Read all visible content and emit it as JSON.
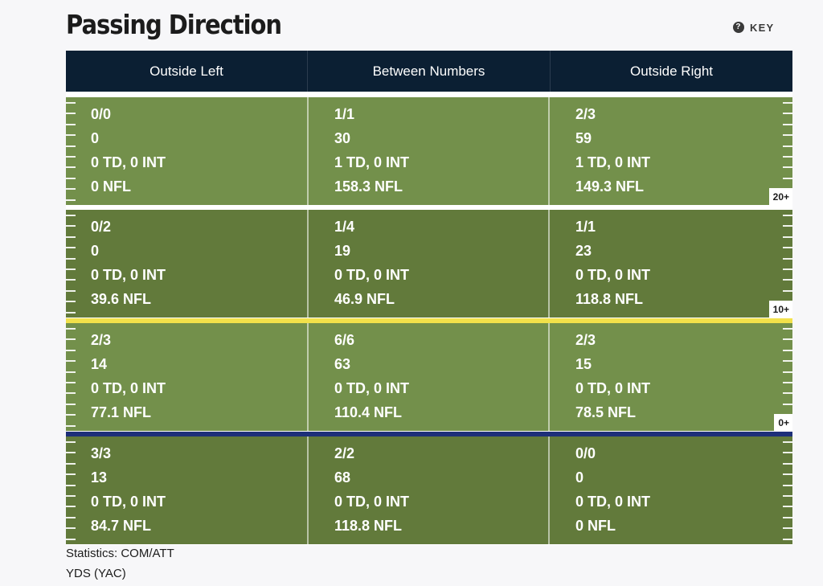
{
  "title": "Passing Direction",
  "key": {
    "icon": "question-circle-icon",
    "glyph": "?",
    "label": "KEY"
  },
  "columns": [
    "Outside Left",
    "Between Numbers",
    "Outside Right"
  ],
  "colors": {
    "header_bg": "#0b1f33",
    "zone_light": "#73904b",
    "zone_dark": "#627a3b",
    "line_white": "#ffffff",
    "line_yellow": "#f2e14a",
    "line_blue": "#1d2f79"
  },
  "zones": [
    {
      "label": "20+",
      "cells": [
        {
          "comp_att": "0/0",
          "yds": "0",
          "td_int": "0 TD, 0 INT",
          "rating": "0 NFL"
        },
        {
          "comp_att": "1/1",
          "yds": "30",
          "td_int": "1 TD, 0 INT",
          "rating": "158.3 NFL"
        },
        {
          "comp_att": "2/3",
          "yds": "59",
          "td_int": "1 TD, 0 INT",
          "rating": "149.3 NFL"
        }
      ]
    },
    {
      "label": "10+",
      "cells": [
        {
          "comp_att": "0/2",
          "yds": "0",
          "td_int": "0 TD, 0 INT",
          "rating": "39.6 NFL"
        },
        {
          "comp_att": "1/4",
          "yds": "19",
          "td_int": "0 TD, 0 INT",
          "rating": "46.9 NFL"
        },
        {
          "comp_att": "1/1",
          "yds": "23",
          "td_int": "0 TD, 0 INT",
          "rating": "118.8 NFL"
        }
      ]
    },
    {
      "label": "0+",
      "cells": [
        {
          "comp_att": "2/3",
          "yds": "14",
          "td_int": "0 TD, 0 INT",
          "rating": "77.1 NFL"
        },
        {
          "comp_att": "6/6",
          "yds": "63",
          "td_int": "0 TD, 0 INT",
          "rating": "110.4 NFL"
        },
        {
          "comp_att": "2/3",
          "yds": "15",
          "td_int": "0 TD, 0 INT",
          "rating": "78.5 NFL"
        }
      ]
    },
    {
      "label": "",
      "cells": [
        {
          "comp_att": "3/3",
          "yds": "13",
          "td_int": "0 TD, 0 INT",
          "rating": "84.7 NFL"
        },
        {
          "comp_att": "2/2",
          "yds": "68",
          "td_int": "0 TD, 0 INT",
          "rating": "118.8 NFL"
        },
        {
          "comp_att": "0/0",
          "yds": "0",
          "td_int": "0 TD, 0 INT",
          "rating": "0 NFL"
        }
      ]
    }
  ],
  "footer": {
    "line1": "Statistics: COM/ATT",
    "line2": "YDS (YAC)"
  }
}
